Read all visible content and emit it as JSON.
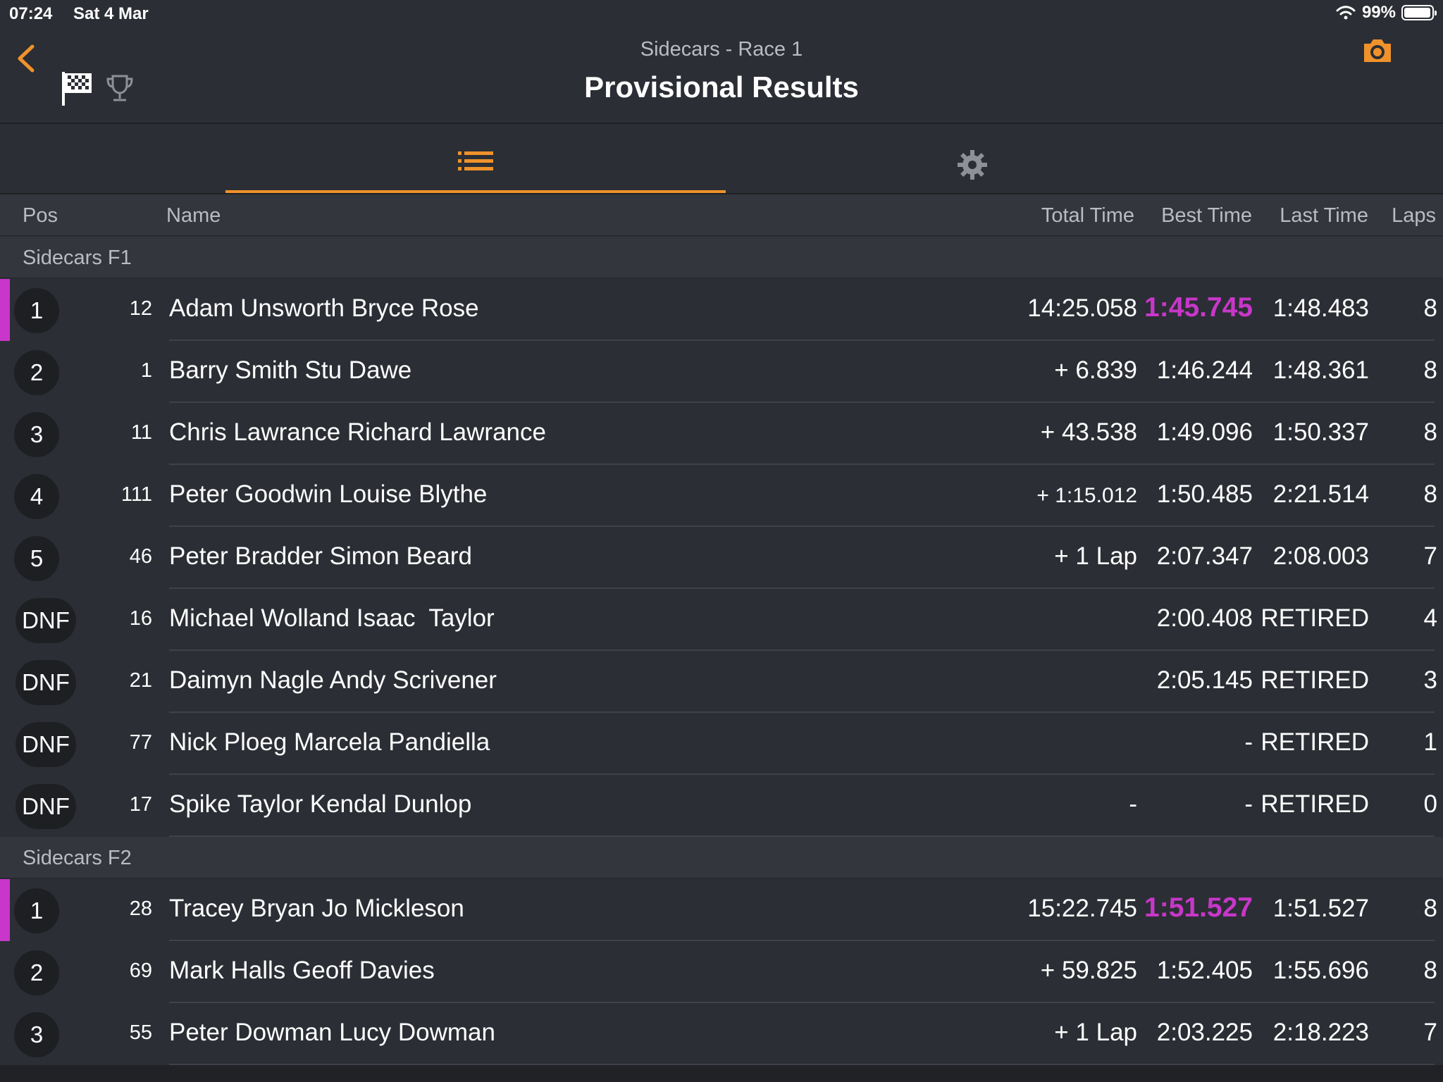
{
  "status_bar": {
    "time": "07:24",
    "date": "Sat 4 Mar",
    "battery": "99%"
  },
  "header": {
    "subtitle": "Sidecars - Race 1",
    "title": "Provisional Results"
  },
  "icons": {
    "back": "back-chevron-icon",
    "flag": "checkered-flag-icon",
    "trophy": "trophy-icon",
    "camera": "camera-icon",
    "list": "list-icon",
    "settings": "gear-icon"
  },
  "colors": {
    "accent": "#f0922b",
    "fastest": "#c837c9",
    "background": "#2b2e34"
  },
  "columns": {
    "pos": "Pos",
    "name": "Name",
    "total": "Total Time",
    "best": "Best Time",
    "last": "Last Time",
    "laps": "Laps"
  },
  "groups": [
    {
      "label": "Sidecars F1",
      "rows": [
        {
          "pos": "1",
          "num": "12",
          "name": "Adam Unsworth Bryce Rose",
          "total": "14:25.058",
          "best": "1:45.745",
          "last": "1:48.483",
          "laps": "8"
        },
        {
          "pos": "2",
          "num": "1",
          "name": "Barry Smith Stu Dawe",
          "total": "+ 6.839",
          "best": "1:46.244",
          "last": "1:48.361",
          "laps": "8"
        },
        {
          "pos": "3",
          "num": "11",
          "name": "Chris Lawrance Richard Lawrance",
          "total": "+ 43.538",
          "best": "1:49.096",
          "last": "1:50.337",
          "laps": "8"
        },
        {
          "pos": "4",
          "num": "111",
          "name": "Peter Goodwin Louise Blythe",
          "total": "+ 1:15.012",
          "best": "1:50.485",
          "last": "2:21.514",
          "laps": "8"
        },
        {
          "pos": "5",
          "num": "46",
          "name": "Peter Bradder Simon Beard",
          "total": "+ 1 Lap",
          "best": "2:07.347",
          "last": "2:08.003",
          "laps": "7"
        },
        {
          "pos": "DNF",
          "num": "16",
          "name": "Michael Wolland Isaac  Taylor",
          "total": "",
          "best": "2:00.408",
          "last": "RETIRED",
          "laps": "4"
        },
        {
          "pos": "DNF",
          "num": "21",
          "name": "Daimyn Nagle Andy Scrivener",
          "total": "",
          "best": "2:05.145",
          "last": "RETIRED",
          "laps": "3"
        },
        {
          "pos": "DNF",
          "num": "77",
          "name": "Nick Ploeg Marcela Pandiella",
          "total": "",
          "best": "-",
          "last": "RETIRED",
          "laps": "1"
        },
        {
          "pos": "DNF",
          "num": "17",
          "name": "Spike Taylor Kendal Dunlop",
          "total": "-",
          "best": "-",
          "last": "RETIRED",
          "laps": "0"
        }
      ]
    },
    {
      "label": "Sidecars F2",
      "rows": [
        {
          "pos": "1",
          "num": "28",
          "name": "Tracey Bryan Jo Mickleson",
          "total": "15:22.745",
          "best": "1:51.527",
          "last": "1:51.527",
          "laps": "8"
        },
        {
          "pos": "2",
          "num": "69",
          "name": "Mark Halls Geoff Davies",
          "total": "+ 59.825",
          "best": "1:52.405",
          "last": "1:55.696",
          "laps": "8"
        },
        {
          "pos": "3",
          "num": "55",
          "name": "Peter Dowman Lucy Dowman",
          "total": "+ 1 Lap",
          "best": "2:03.225",
          "last": "2:18.223",
          "laps": "7"
        }
      ]
    }
  ]
}
